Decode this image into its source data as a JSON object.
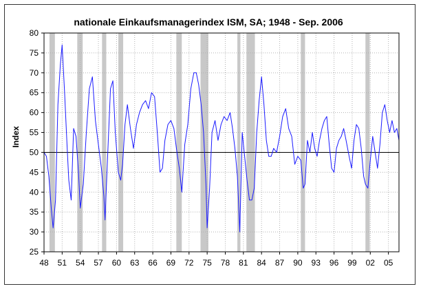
{
  "chart_data": {
    "type": "line",
    "title": "nationale Einkaufsmanagerindex ISM, SA; 1948 - Sep. 2006",
    "xlabel": "",
    "ylabel": "Index",
    "xlim": [
      1948,
      2006.75
    ],
    "ylim": [
      25,
      80
    ],
    "grid": true,
    "reference_line": 50,
    "y_ticks": [
      "25",
      "30",
      "35",
      "40",
      "45",
      "50",
      "55",
      "60",
      "65",
      "70",
      "75",
      "80"
    ],
    "y_tick_values": [
      25,
      30,
      35,
      40,
      45,
      50,
      55,
      60,
      65,
      70,
      75,
      80
    ],
    "x_ticks": [
      "48",
      "51",
      "54",
      "57",
      "60",
      "63",
      "66",
      "69",
      "72",
      "75",
      "78",
      "81",
      "84",
      "87",
      "90",
      "93",
      "96",
      "99",
      "02",
      "05"
    ],
    "x_tick_values": [
      1948,
      1951,
      1954,
      1957,
      1960,
      1963,
      1966,
      1969,
      1972,
      1975,
      1978,
      1981,
      1984,
      1987,
      1990,
      1993,
      1996,
      1999,
      2002,
      2005
    ],
    "recessions": [
      [
        1948.9,
        1949.8
      ],
      [
        1953.5,
        1954.4
      ],
      [
        1957.6,
        1958.3
      ],
      [
        1960.3,
        1961.1
      ],
      [
        1969.9,
        1970.8
      ],
      [
        1973.9,
        1975.2
      ],
      [
        1980.0,
        1980.5
      ],
      [
        1981.5,
        1982.9
      ],
      [
        1990.5,
        1991.2
      ],
      [
        2001.2,
        2001.9
      ]
    ],
    "series": [
      {
        "name": "ISM",
        "color": "#1a1aff",
        "points": [
          [
            1948.0,
            50
          ],
          [
            1948.4,
            49
          ],
          [
            1948.8,
            44
          ],
          [
            1949.2,
            36
          ],
          [
            1949.5,
            31
          ],
          [
            1949.9,
            38
          ],
          [
            1950.3,
            62
          ],
          [
            1950.7,
            72
          ],
          [
            1951.0,
            77
          ],
          [
            1951.4,
            65
          ],
          [
            1951.8,
            52
          ],
          [
            1952.1,
            43
          ],
          [
            1952.5,
            38
          ],
          [
            1952.9,
            56
          ],
          [
            1953.3,
            54
          ],
          [
            1953.7,
            45
          ],
          [
            1954.0,
            36
          ],
          [
            1954.5,
            42
          ],
          [
            1955.0,
            55
          ],
          [
            1955.5,
            66
          ],
          [
            1956.0,
            69
          ],
          [
            1956.5,
            58
          ],
          [
            1957.0,
            52
          ],
          [
            1957.5,
            46
          ],
          [
            1957.9,
            39
          ],
          [
            1958.1,
            33
          ],
          [
            1958.5,
            48
          ],
          [
            1959.0,
            66
          ],
          [
            1959.4,
            68
          ],
          [
            1959.8,
            55
          ],
          [
            1960.3,
            45
          ],
          [
            1960.7,
            43
          ],
          [
            1961.0,
            47
          ],
          [
            1961.4,
            57
          ],
          [
            1961.8,
            62
          ],
          [
            1962.3,
            56
          ],
          [
            1962.8,
            51
          ],
          [
            1963.3,
            57
          ],
          [
            1963.8,
            60
          ],
          [
            1964.3,
            62
          ],
          [
            1964.8,
            63
          ],
          [
            1965.3,
            61
          ],
          [
            1965.8,
            65
          ],
          [
            1966.3,
            64
          ],
          [
            1966.8,
            54
          ],
          [
            1967.2,
            45
          ],
          [
            1967.6,
            46
          ],
          [
            1968.0,
            53
          ],
          [
            1968.5,
            57
          ],
          [
            1969.0,
            58
          ],
          [
            1969.5,
            56
          ],
          [
            1970.0,
            50
          ],
          [
            1970.4,
            46
          ],
          [
            1970.8,
            40
          ],
          [
            1971.3,
            52
          ],
          [
            1971.8,
            57
          ],
          [
            1972.3,
            66
          ],
          [
            1972.8,
            70
          ],
          [
            1973.2,
            70
          ],
          [
            1973.6,
            67
          ],
          [
            1974.0,
            62
          ],
          [
            1974.4,
            55
          ],
          [
            1974.8,
            42
          ],
          [
            1975.0,
            31
          ],
          [
            1975.4,
            41
          ],
          [
            1975.8,
            55
          ],
          [
            1976.3,
            58
          ],
          [
            1976.8,
            53
          ],
          [
            1977.3,
            57
          ],
          [
            1977.8,
            59
          ],
          [
            1978.3,
            58
          ],
          [
            1978.8,
            60
          ],
          [
            1979.2,
            56
          ],
          [
            1979.6,
            51
          ],
          [
            1980.0,
            44
          ],
          [
            1980.4,
            30
          ],
          [
            1980.8,
            55
          ],
          [
            1981.2,
            49
          ],
          [
            1981.6,
            43
          ],
          [
            1982.0,
            38
          ],
          [
            1982.4,
            38
          ],
          [
            1982.8,
            41
          ],
          [
            1983.2,
            55
          ],
          [
            1983.6,
            63
          ],
          [
            1984.0,
            69
          ],
          [
            1984.4,
            62
          ],
          [
            1984.8,
            53
          ],
          [
            1985.2,
            49
          ],
          [
            1985.6,
            49
          ],
          [
            1986.0,
            51
          ],
          [
            1986.5,
            50
          ],
          [
            1987.0,
            54
          ],
          [
            1987.5,
            59
          ],
          [
            1988.0,
            61
          ],
          [
            1988.5,
            56
          ],
          [
            1989.0,
            54
          ],
          [
            1989.5,
            47
          ],
          [
            1990.0,
            49
          ],
          [
            1990.5,
            48
          ],
          [
            1990.9,
            41
          ],
          [
            1991.2,
            42
          ],
          [
            1991.6,
            53
          ],
          [
            1992.0,
            50
          ],
          [
            1992.4,
            55
          ],
          [
            1992.8,
            51
          ],
          [
            1993.2,
            49
          ],
          [
            1993.6,
            53
          ],
          [
            1994.0,
            56
          ],
          [
            1994.4,
            58
          ],
          [
            1994.8,
            59
          ],
          [
            1995.2,
            52
          ],
          [
            1995.6,
            46
          ],
          [
            1996.0,
            45
          ],
          [
            1996.4,
            51
          ],
          [
            1996.8,
            53
          ],
          [
            1997.2,
            54
          ],
          [
            1997.6,
            56
          ],
          [
            1998.0,
            53
          ],
          [
            1998.5,
            49
          ],
          [
            1998.9,
            46
          ],
          [
            1999.3,
            53
          ],
          [
            1999.7,
            57
          ],
          [
            2000.1,
            56
          ],
          [
            2000.5,
            51
          ],
          [
            2000.9,
            44
          ],
          [
            2001.2,
            42
          ],
          [
            2001.6,
            41
          ],
          [
            2002.0,
            48
          ],
          [
            2002.4,
            54
          ],
          [
            2002.8,
            50
          ],
          [
            2003.2,
            46
          ],
          [
            2003.6,
            52
          ],
          [
            2004.0,
            60
          ],
          [
            2004.4,
            62
          ],
          [
            2004.8,
            58
          ],
          [
            2005.2,
            55
          ],
          [
            2005.6,
            58
          ],
          [
            2006.0,
            55
          ],
          [
            2006.4,
            56
          ],
          [
            2006.75,
            53
          ]
        ]
      }
    ]
  }
}
